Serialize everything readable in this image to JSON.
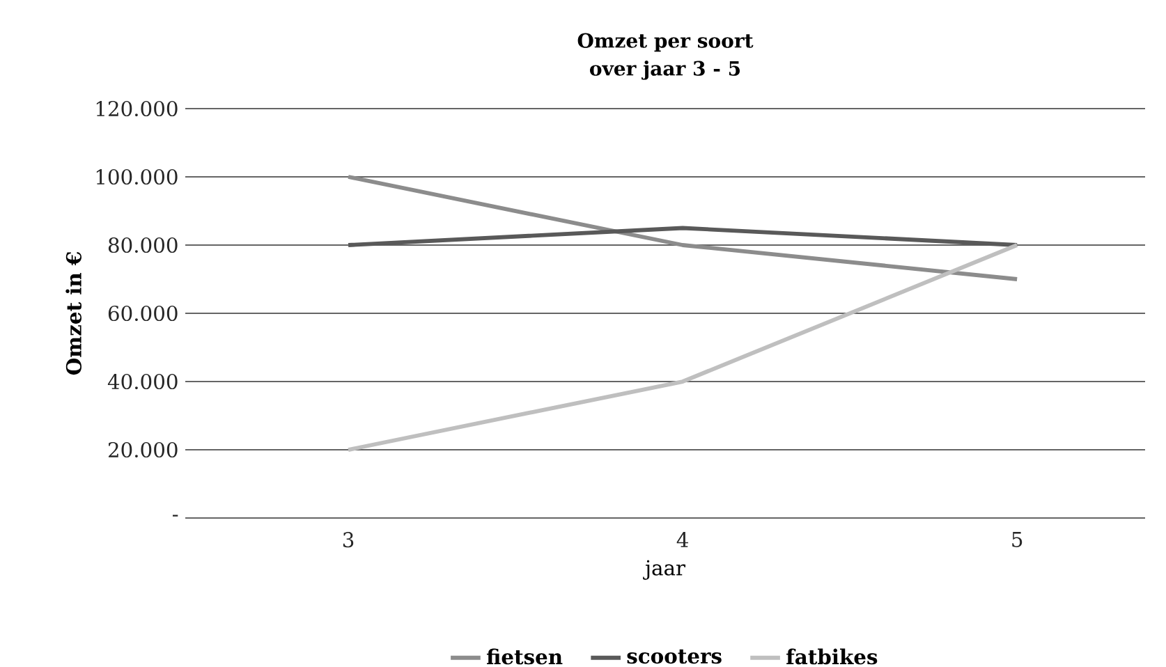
{
  "chart_data": {
    "type": "line",
    "title": "Omzet per soort",
    "subtitle": "over jaar 3 - 5",
    "xlabel": "jaar",
    "ylabel": "Omzet in €",
    "categories": [
      "3",
      "4",
      "5"
    ],
    "series": [
      {
        "name": "fietsen",
        "color": "#8c8c8c",
        "values": [
          100000,
          80000,
          70000
        ]
      },
      {
        "name": "scooters",
        "color": "#595959",
        "values": [
          80000,
          85000,
          80000
        ]
      },
      {
        "name": "fatbikes",
        "color": "#bfbfbf",
        "values": [
          20000,
          40000,
          80000
        ]
      }
    ],
    "ylim": [
      0,
      120000
    ],
    "yticks": [
      {
        "value": 0,
        "label": "-"
      },
      {
        "value": 20000,
        "label": "20.000"
      },
      {
        "value": 40000,
        "label": "40.000"
      },
      {
        "value": 60000,
        "label": "60.000"
      },
      {
        "value": 80000,
        "label": "80.000"
      },
      {
        "value": 100000,
        "label": "100.000"
      },
      {
        "value": 120000,
        "label": "120.000"
      }
    ],
    "grid": "y",
    "legend": "bottom",
    "marker": "none",
    "line_style": "solid"
  }
}
